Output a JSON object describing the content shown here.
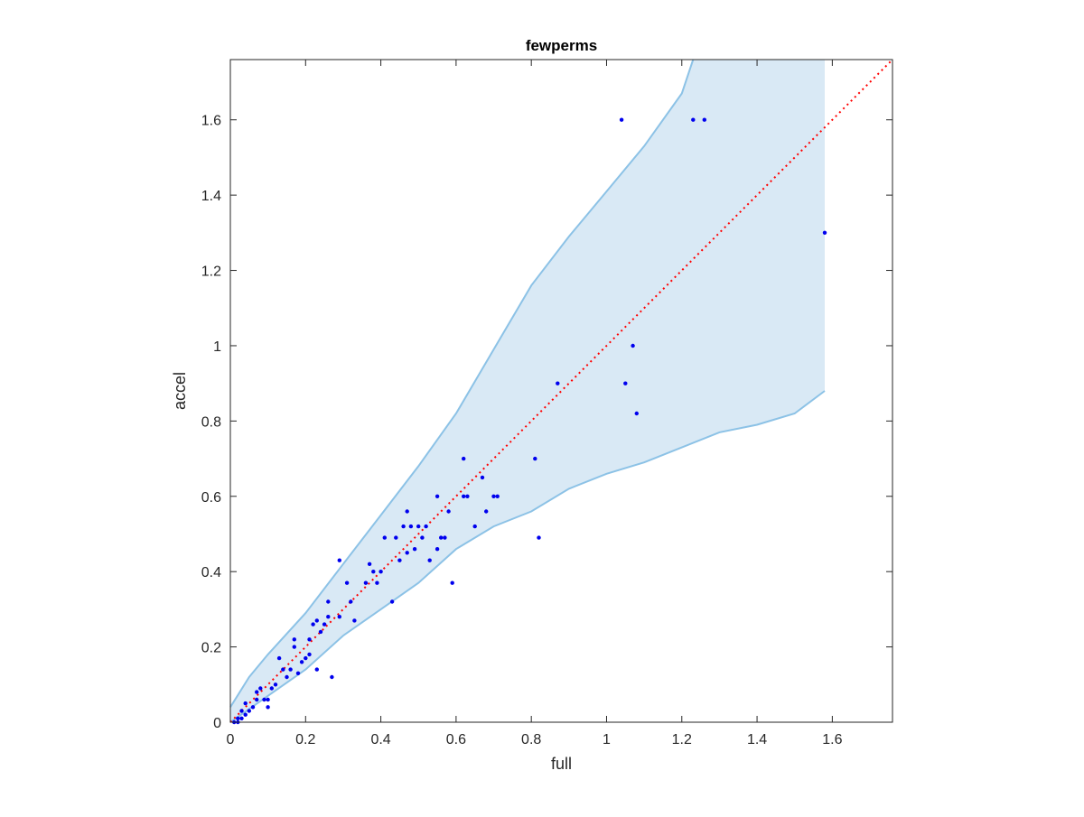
{
  "chart_data": {
    "type": "scatter",
    "title": "fewperms",
    "xlabel": "full",
    "ylabel": "accel",
    "xlim": [
      0,
      1.76
    ],
    "ylim": [
      0,
      1.76
    ],
    "xticks": [
      0,
      0.2,
      0.4,
      0.6,
      0.8,
      1,
      1.2,
      1.4,
      1.6
    ],
    "yticks": [
      0,
      0.2,
      0.4,
      0.6,
      0.8,
      1,
      1.2,
      1.4,
      1.6
    ],
    "xtick_labels": [
      "0",
      "0.2",
      "0.4",
      "0.6",
      "0.8",
      "1",
      "1.2",
      "1.4",
      "1.6"
    ],
    "ytick_labels": [
      "0",
      "0.2",
      "0.4",
      "0.6",
      "0.8",
      "1",
      "1.2",
      "1.4",
      "1.6"
    ],
    "grid": false,
    "colors": {
      "points": "#0000ee",
      "identity_line": "#ff0000",
      "band_fill": "#d9e9f5",
      "band_edge": "#8cc2e6",
      "axes": "#262626"
    },
    "band": {
      "upper": [
        [
          0,
          0.04
        ],
        [
          0.05,
          0.12
        ],
        [
          0.1,
          0.18
        ],
        [
          0.2,
          0.29
        ],
        [
          0.3,
          0.42
        ],
        [
          0.4,
          0.55
        ],
        [
          0.5,
          0.68
        ],
        [
          0.6,
          0.82
        ],
        [
          0.7,
          0.99
        ],
        [
          0.8,
          1.16
        ],
        [
          0.9,
          1.29
        ],
        [
          1.0,
          1.41
        ],
        [
          1.1,
          1.53
        ],
        [
          1.2,
          1.67
        ],
        [
          1.23,
          1.76
        ],
        [
          1.58,
          1.76
        ]
      ],
      "lower": [
        [
          0,
          0
        ],
        [
          0.1,
          0.07
        ],
        [
          0.2,
          0.14
        ],
        [
          0.3,
          0.23
        ],
        [
          0.4,
          0.3
        ],
        [
          0.5,
          0.37
        ],
        [
          0.6,
          0.46
        ],
        [
          0.7,
          0.52
        ],
        [
          0.8,
          0.56
        ],
        [
          0.9,
          0.62
        ],
        [
          1.0,
          0.66
        ],
        [
          1.1,
          0.69
        ],
        [
          1.2,
          0.73
        ],
        [
          1.3,
          0.77
        ],
        [
          1.4,
          0.79
        ],
        [
          1.5,
          0.82
        ],
        [
          1.58,
          0.88
        ]
      ]
    },
    "identity_line": [
      [
        0,
        0
      ],
      [
        1.76,
        1.76
      ]
    ],
    "points": [
      [
        0.01,
        0.0
      ],
      [
        0.02,
        0.0
      ],
      [
        0.02,
        0.01
      ],
      [
        0.03,
        0.01
      ],
      [
        0.03,
        0.03
      ],
      [
        0.04,
        0.02
      ],
      [
        0.04,
        0.05
      ],
      [
        0.05,
        0.03
      ],
      [
        0.06,
        0.04
      ],
      [
        0.07,
        0.06
      ],
      [
        0.07,
        0.08
      ],
      [
        0.08,
        0.09
      ],
      [
        0.09,
        0.06
      ],
      [
        0.1,
        0.04
      ],
      [
        0.1,
        0.06
      ],
      [
        0.11,
        0.09
      ],
      [
        0.12,
        0.1
      ],
      [
        0.13,
        0.17
      ],
      [
        0.14,
        0.14
      ],
      [
        0.15,
        0.12
      ],
      [
        0.16,
        0.14
      ],
      [
        0.17,
        0.2
      ],
      [
        0.17,
        0.22
      ],
      [
        0.18,
        0.13
      ],
      [
        0.19,
        0.16
      ],
      [
        0.2,
        0.17
      ],
      [
        0.21,
        0.18
      ],
      [
        0.21,
        0.22
      ],
      [
        0.22,
        0.26
      ],
      [
        0.23,
        0.27
      ],
      [
        0.23,
        0.14
      ],
      [
        0.24,
        0.24
      ],
      [
        0.25,
        0.26
      ],
      [
        0.26,
        0.28
      ],
      [
        0.26,
        0.32
      ],
      [
        0.27,
        0.12
      ],
      [
        0.29,
        0.28
      ],
      [
        0.29,
        0.43
      ],
      [
        0.31,
        0.37
      ],
      [
        0.32,
        0.32
      ],
      [
        0.33,
        0.27
      ],
      [
        0.36,
        0.37
      ],
      [
        0.37,
        0.42
      ],
      [
        0.38,
        0.4
      ],
      [
        0.39,
        0.37
      ],
      [
        0.4,
        0.4
      ],
      [
        0.41,
        0.49
      ],
      [
        0.43,
        0.32
      ],
      [
        0.44,
        0.49
      ],
      [
        0.45,
        0.43
      ],
      [
        0.46,
        0.52
      ],
      [
        0.47,
        0.45
      ],
      [
        0.47,
        0.56
      ],
      [
        0.48,
        0.52
      ],
      [
        0.49,
        0.46
      ],
      [
        0.5,
        0.52
      ],
      [
        0.51,
        0.49
      ],
      [
        0.52,
        0.52
      ],
      [
        0.53,
        0.43
      ],
      [
        0.55,
        0.6
      ],
      [
        0.55,
        0.46
      ],
      [
        0.56,
        0.49
      ],
      [
        0.57,
        0.49
      ],
      [
        0.58,
        0.56
      ],
      [
        0.59,
        0.37
      ],
      [
        0.62,
        0.7
      ],
      [
        0.62,
        0.6
      ],
      [
        0.63,
        0.6
      ],
      [
        0.65,
        0.52
      ],
      [
        0.67,
        0.65
      ],
      [
        0.68,
        0.56
      ],
      [
        0.7,
        0.6
      ],
      [
        0.71,
        0.6
      ],
      [
        0.81,
        0.7
      ],
      [
        0.82,
        0.49
      ],
      [
        0.87,
        0.9
      ],
      [
        1.04,
        1.6
      ],
      [
        1.05,
        0.9
      ],
      [
        1.07,
        1.0
      ],
      [
        1.08,
        0.82
      ],
      [
        1.23,
        1.6
      ],
      [
        1.26,
        1.6
      ],
      [
        1.58,
        1.3
      ]
    ]
  }
}
